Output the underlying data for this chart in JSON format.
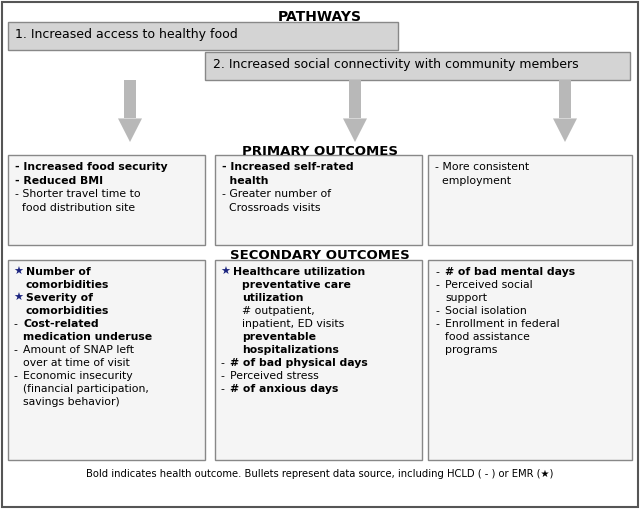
{
  "title": "PATHWAYS",
  "bg_color": "#ffffff",
  "pathway_box_color": "#d4d4d4",
  "outcome_box_color": "#f0f0f0",
  "box_edge": "#888888",
  "arrow_color": "#b0b0b0",
  "text_color": "#000000",
  "star_color": "#1a237e",
  "pathway1": "1. Increased access to healthy food",
  "pathway2": "2. Increased social connectivity with community members",
  "primary_label": "PRIMARY OUTCOMES",
  "secondary_label": "SECONDARY OUTCOMES",
  "footnote": "Bold indicates health outcome. Bullets represent data source, including HCLD ( - ) or EMR (★)"
}
